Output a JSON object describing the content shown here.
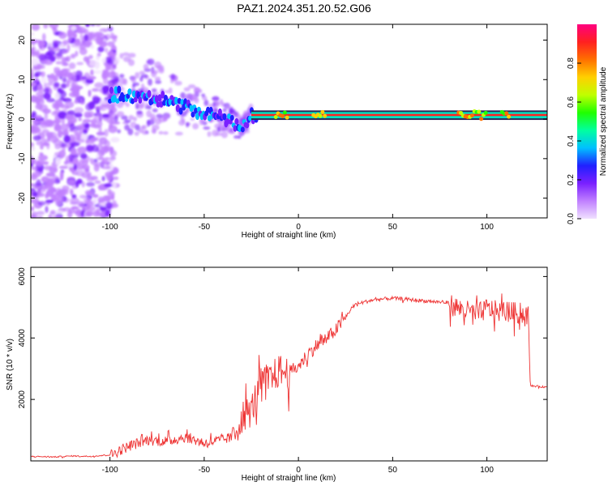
{
  "title": "PAZ1.2024.351.20.52.G06",
  "chart_data": [
    {
      "type": "heatmap",
      "xlabel": "Height of straight line (km)",
      "ylabel": "Frequency (Hz)",
      "xlim": [
        -142,
        132
      ],
      "ylim": [
        -25,
        24
      ],
      "xticks": [
        -100,
        -50,
        0,
        50,
        100
      ],
      "yticks": [
        -20,
        -10,
        0,
        10,
        20
      ],
      "colorbar": {
        "label": "Normalized spectral amplitude",
        "range": [
          0,
          1
        ],
        "ticks": [
          "0.0",
          "0.2",
          "0.4",
          "0.6",
          "0.8"
        ],
        "colors": [
          "#f0e0ff",
          "#c080ff",
          "#7a20ff",
          "#2020ff",
          "#00c0ff",
          "#00ffa0",
          "#20ff00",
          "#c0ff00",
          "#ffd000",
          "#ff7000",
          "#ff2020",
          "#ff0080"
        ]
      },
      "ridge": [
        {
          "x": -100,
          "freq": 6
        },
        {
          "x": -80,
          "freq": 6
        },
        {
          "x": -60,
          "freq": 3
        },
        {
          "x": -45,
          "freq": 1
        },
        {
          "x": -30,
          "freq": -2
        },
        {
          "x": -25,
          "freq": 1
        },
        {
          "x": -10,
          "freq": 1.5
        },
        {
          "x": 0,
          "freq": 0
        },
        {
          "x": 10,
          "freq": 1
        },
        {
          "x": 50,
          "freq": 1
        },
        {
          "x": 100,
          "freq": 1
        },
        {
          "x": 132,
          "freq": 1
        }
      ]
    },
    {
      "type": "line",
      "xlabel": "Height of straight line (km)",
      "ylabel": "SNR (10 * v/v)",
      "xlim": [
        -142,
        132
      ],
      "ylim": [
        0,
        6300
      ],
      "xticks": [
        -100,
        -50,
        0,
        50,
        100
      ],
      "yticks": [
        2000,
        4000,
        6000
      ],
      "color": "#ee3333",
      "points": [
        {
          "x": -142,
          "y": 150
        },
        {
          "x": -130,
          "y": 130
        },
        {
          "x": -120,
          "y": 160
        },
        {
          "x": -110,
          "y": 150
        },
        {
          "x": -100,
          "y": 200
        },
        {
          "x": -95,
          "y": 350
        },
        {
          "x": -90,
          "y": 500
        },
        {
          "x": -80,
          "y": 700
        },
        {
          "x": -70,
          "y": 650
        },
        {
          "x": -60,
          "y": 800
        },
        {
          "x": -50,
          "y": 600
        },
        {
          "x": -40,
          "y": 700
        },
        {
          "x": -35,
          "y": 800
        },
        {
          "x": -30,
          "y": 1500
        },
        {
          "x": -25,
          "y": 1700
        },
        {
          "x": -20,
          "y": 2600
        },
        {
          "x": -15,
          "y": 2700
        },
        {
          "x": -10,
          "y": 3000
        },
        {
          "x": -5,
          "y": 2900
        },
        {
          "x": 0,
          "y": 3100
        },
        {
          "x": 5,
          "y": 3500
        },
        {
          "x": 10,
          "y": 3800
        },
        {
          "x": 15,
          "y": 4000
        },
        {
          "x": 20,
          "y": 4300
        },
        {
          "x": 25,
          "y": 4700
        },
        {
          "x": 30,
          "y": 5100
        },
        {
          "x": 40,
          "y": 5250
        },
        {
          "x": 50,
          "y": 5300
        },
        {
          "x": 60,
          "y": 5250
        },
        {
          "x": 70,
          "y": 5200
        },
        {
          "x": 80,
          "y": 5150
        },
        {
          "x": 85,
          "y": 5000
        },
        {
          "x": 90,
          "y": 4900
        },
        {
          "x": 95,
          "y": 4800
        },
        {
          "x": 100,
          "y": 5000
        },
        {
          "x": 105,
          "y": 4900
        },
        {
          "x": 110,
          "y": 4900
        },
        {
          "x": 115,
          "y": 4850
        },
        {
          "x": 120,
          "y": 4800
        },
        {
          "x": 122,
          "y": 4800
        },
        {
          "x": 123,
          "y": 2450
        },
        {
          "x": 132,
          "y": 2400
        }
      ]
    }
  ]
}
